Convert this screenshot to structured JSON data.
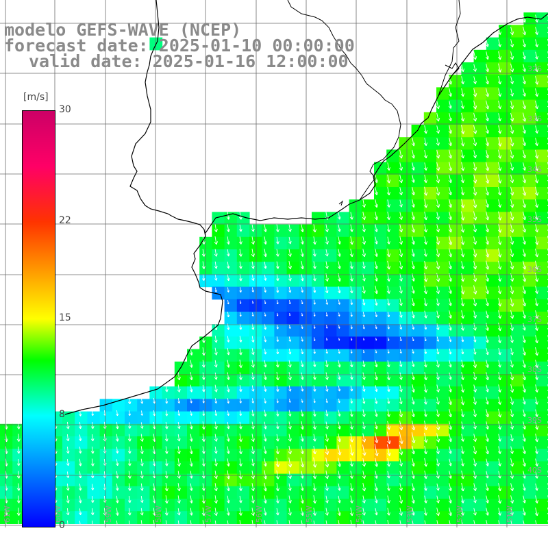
{
  "titles": {
    "line1": "modelo GEFS-WAVE (NCEP)",
    "line2": "forecast date: 2025-01-10 00:00:00",
    "line3": "valid date: 2025-01-16 12:00:00"
  },
  "colorbar": {
    "unit": "[m/s]",
    "ticks": [
      {
        "value": 30,
        "label": "30"
      },
      {
        "value": 22,
        "label": "22"
      },
      {
        "value": 15,
        "label": "15"
      },
      {
        "value": 8,
        "label": "8"
      },
      {
        "value": 0,
        "label": "0"
      }
    ],
    "stops": [
      {
        "value": 0,
        "color": "#0000ff"
      },
      {
        "value": 8,
        "color": "#00ffff"
      },
      {
        "value": 12,
        "color": "#00ff00"
      },
      {
        "value": 15,
        "color": "#ffff00"
      },
      {
        "value": 22,
        "color": "#ff3300"
      },
      {
        "value": 26,
        "color": "#ff0066"
      },
      {
        "value": 30,
        "color": "#cc0066"
      }
    ]
  },
  "map": {
    "lon_range": [
      -62.5,
      -42
    ],
    "lat_range": [
      -41,
      -31
    ],
    "lon_labels": [
      "61W",
      "60W",
      "59W",
      "58W",
      "57W",
      "56W",
      "55W",
      "54W",
      "53W",
      "52W",
      "51W"
    ],
    "lat_labels": [
      "32S",
      "33S",
      "34S",
      "35S",
      "36S",
      "37S",
      "38S",
      "39S",
      "40S"
    ],
    "land_color": "#ffffff",
    "coast_color": "#000000",
    "grid_color": "#666666",
    "arrow_color": "#ffffff"
  }
}
